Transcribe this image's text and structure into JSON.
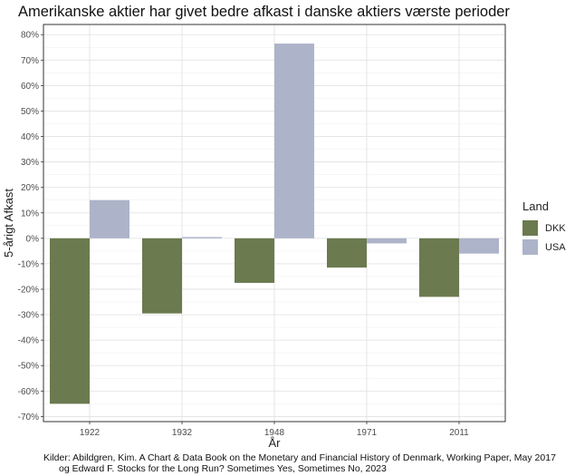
{
  "colors": {
    "DKK": "#6b7a4f",
    "USA": "#adb3c9"
  },
  "caption": {
    "line1": "Kilder: Abildgren, Kim. A Chart & Data Book on the Monetary and Financial History of Denmark, Working Paper, May 2017",
    "line2": "og Edward F. Stocks for the Long Run? Sometimes Yes, Sometimes No, 2023"
  },
  "chart_data": {
    "type": "bar",
    "title": "Amerikanske aktier har givet bedre afkast i danske aktiers værste perioder",
    "xlabel": "År",
    "ylabel": "5-årigt Afkast",
    "categories": [
      "1922",
      "1932",
      "1948",
      "1971",
      "2011"
    ],
    "series": [
      {
        "name": "DKK",
        "values": [
          -65,
          -29.5,
          -17.5,
          -11.5,
          -23
        ]
      },
      {
        "name": "USA",
        "values": [
          15,
          0.5,
          76.5,
          -2,
          -6
        ]
      }
    ],
    "ylim": [
      -72,
      84
    ],
    "yticks": [
      80,
      70,
      60,
      50,
      40,
      30,
      20,
      10,
      0,
      -10,
      -20,
      -30,
      -40,
      -50,
      -60,
      -70
    ],
    "ytick_labels": [
      "80%",
      "70%",
      "60%",
      "50%",
      "40%",
      "30%",
      "20%",
      "10%",
      "0%",
      "-10%",
      "-20%",
      "-30%",
      "-40%",
      "-50%",
      "-60%",
      "-70%"
    ],
    "legend": {
      "title": "Land",
      "position": "right"
    },
    "grid": true
  }
}
